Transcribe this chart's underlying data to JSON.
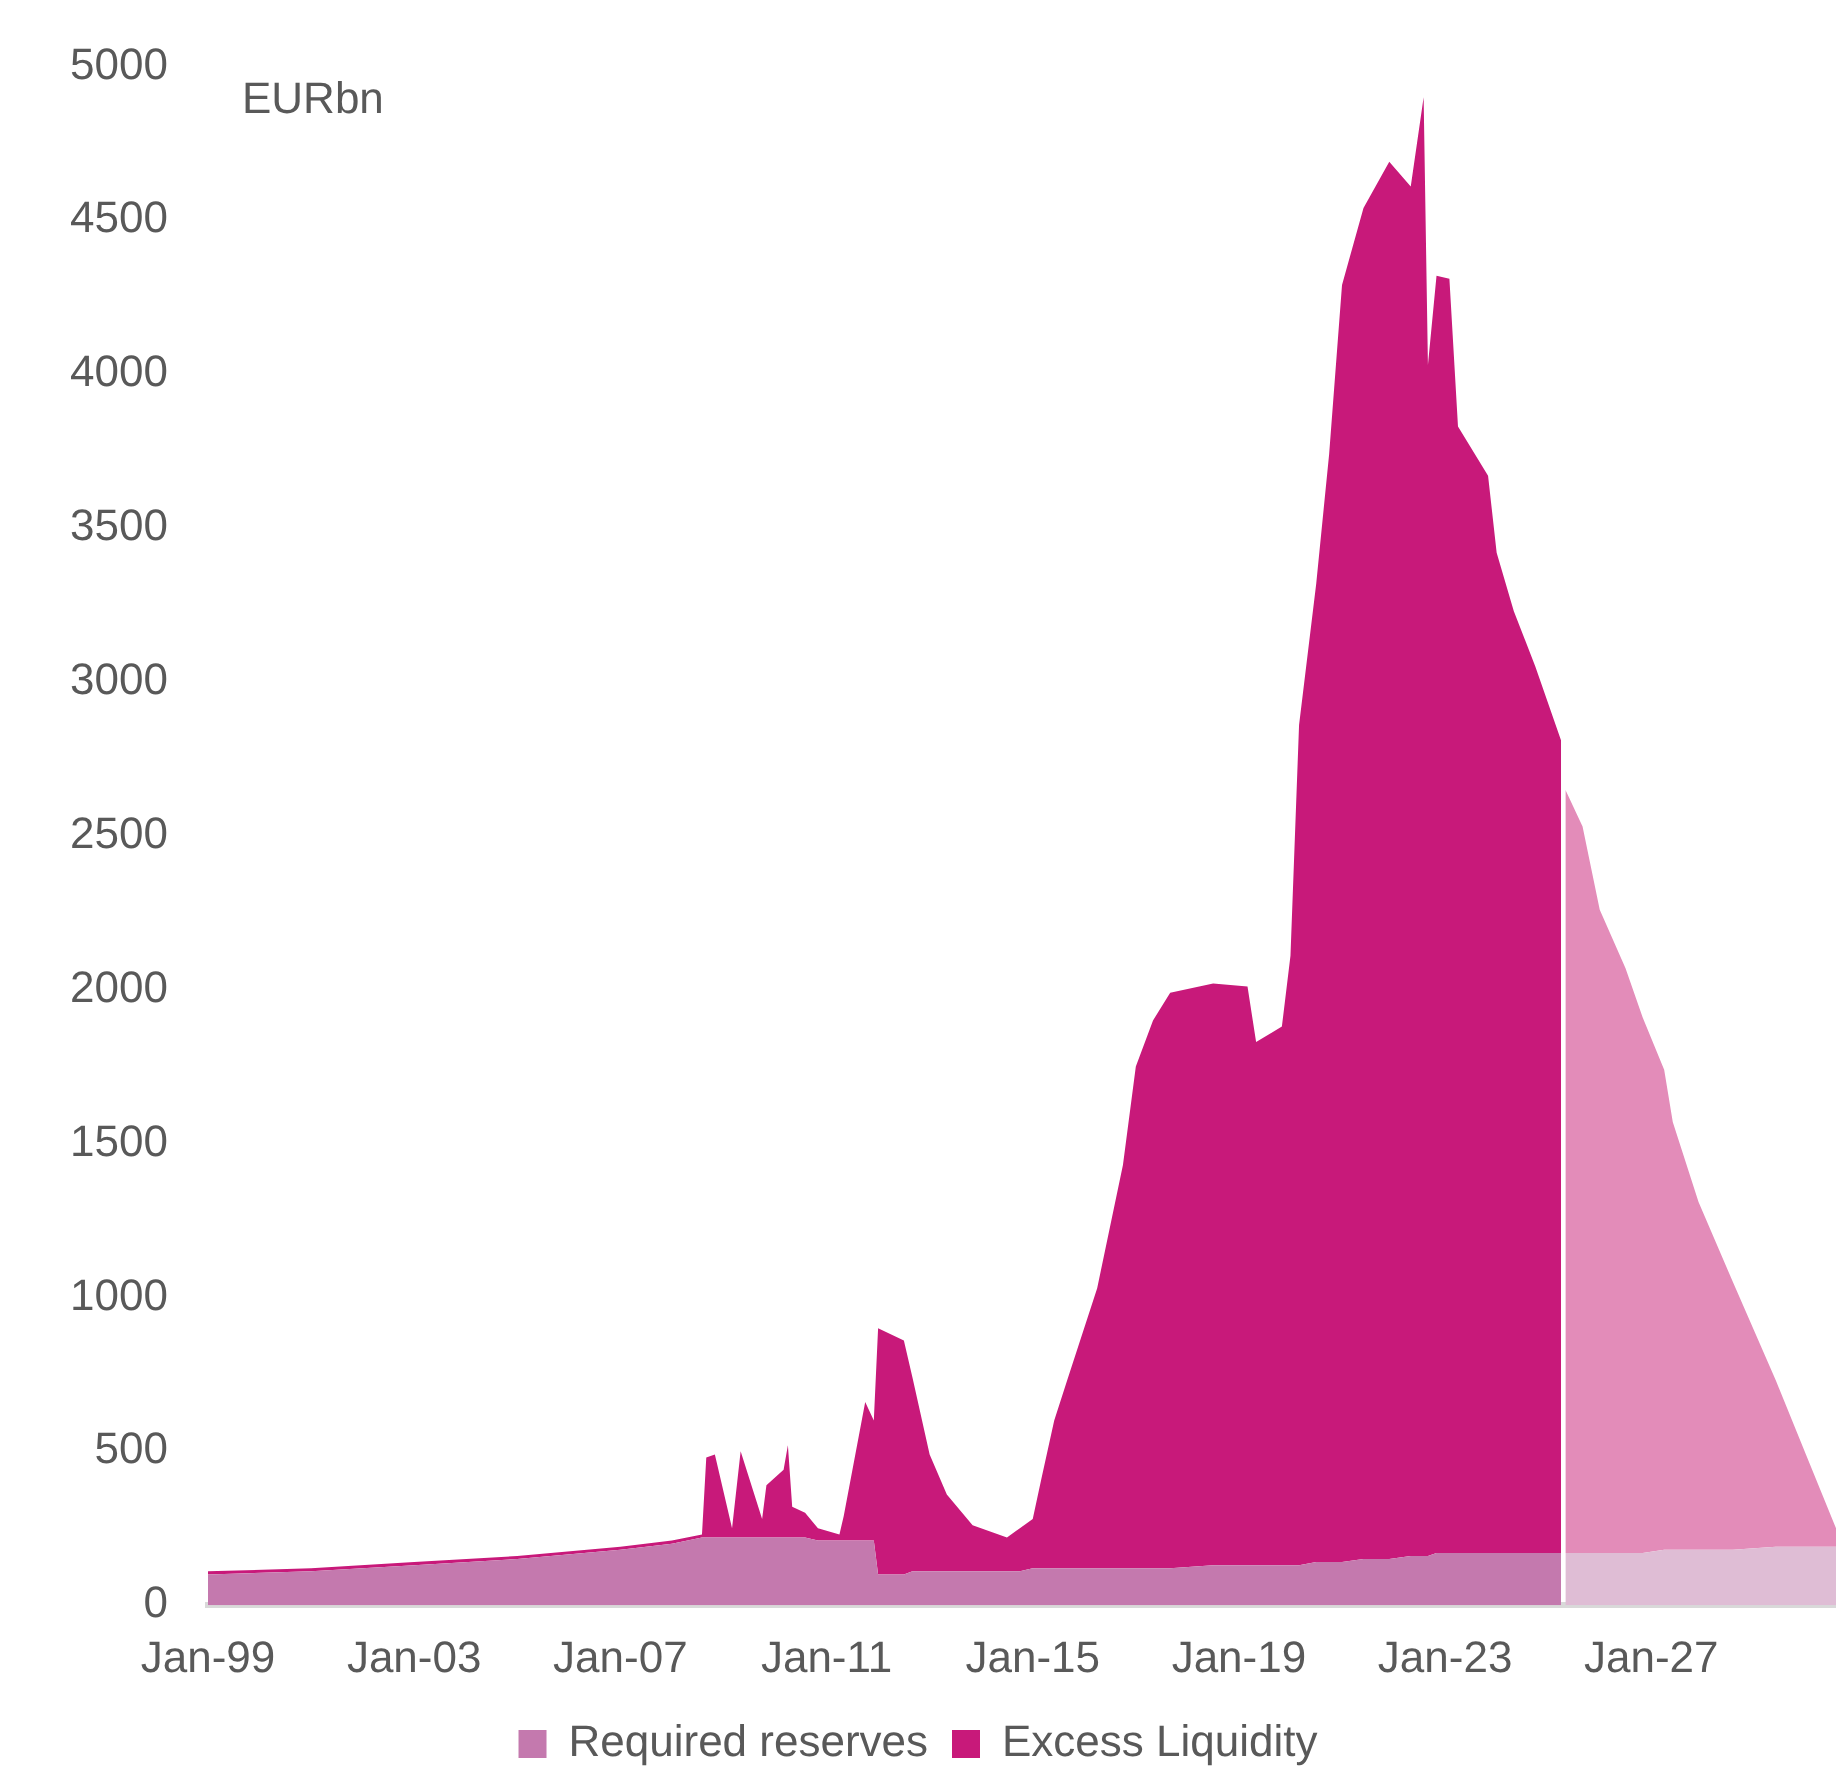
{
  "chart_data": {
    "type": "area",
    "stacked": true,
    "ylabel": "EURbn",
    "legend": "bottom",
    "grid": false,
    "x": [
      "1999-01",
      "2001-01",
      "2003-01",
      "2005-01",
      "2007-01",
      "2008-01",
      "2008-08",
      "2008-09",
      "2008-11",
      "2009-03",
      "2009-05",
      "2009-10",
      "2009-11",
      "2010-03",
      "2010-04",
      "2010-05",
      "2010-08",
      "2010-11",
      "2011-04",
      "2011-05",
      "2011-10",
      "2011-12",
      "2012-01",
      "2012-07",
      "2012-09",
      "2013-01",
      "2013-05",
      "2013-11",
      "2014-07",
      "2014-10",
      "2015-01",
      "2015-03",
      "2015-06",
      "2015-09",
      "2016-04",
      "2016-10",
      "2017-01",
      "2017-05",
      "2017-09",
      "2018-07",
      "2019-03",
      "2019-05",
      "2019-11",
      "2020-01",
      "2020-03",
      "2020-07",
      "2020-10",
      "2021-01",
      "2021-06",
      "2021-12",
      "2022-05",
      "2022-08",
      "2022-09",
      "2022-11",
      "2023-02",
      "2023-04",
      "2023-11",
      "2024-01",
      "2024-05",
      "2024-10",
      "2025-04",
      "2025-05",
      "2025-09",
      "2026-01",
      "2026-07",
      "2026-11",
      "2027-04",
      "2027-06",
      "2027-12",
      "2028-08",
      "2029-06",
      "2030-01",
      "2030-08"
    ],
    "series": [
      {
        "name": "Required reserves",
        "color": "#c479ae",
        "values": [
          100,
          110,
          130,
          150,
          180,
          200,
          220,
          220,
          220,
          220,
          220,
          220,
          220,
          220,
          220,
          220,
          220,
          210,
          210,
          210,
          210,
          210,
          100,
          100,
          110,
          110,
          110,
          110,
          110,
          110,
          120,
          120,
          120,
          120,
          120,
          120,
          120,
          120,
          120,
          130,
          130,
          130,
          130,
          130,
          130,
          140,
          140,
          140,
          150,
          150,
          160,
          160,
          160,
          170,
          170,
          170,
          170,
          170,
          170,
          170,
          170,
          null,
          null,
          null,
          null,
          null,
          null,
          null,
          null,
          null,
          null,
          null,
          null
        ]
      },
      {
        "name": "Excess Liquidity",
        "color": "#c8197a",
        "values": [
          10,
          10,
          10,
          10,
          10,
          10,
          10,
          260,
          270,
          30,
          280,
          60,
          170,
          220,
          300,
          100,
          80,
          40,
          20,
          80,
          450,
          390,
          800,
          760,
          630,
          380,
          250,
          150,
          110,
          140,
          160,
          290,
          480,
          610,
          910,
          1310,
          1630,
          1780,
          1870,
          1890,
          1880,
          1700,
          1750,
          1980,
          2730,
          3180,
          3600,
          4150,
          4390,
          4540,
          4450,
          4740,
          3870,
          4150,
          4140,
          3660,
          3500,
          3250,
          3060,
          2880,
          2640,
          null,
          null,
          null,
          null,
          null,
          null,
          null,
          null,
          null,
          null,
          null,
          null
        ]
      },
      {
        "color": "#dfbdd5",
        "values": [
          null,
          null,
          null,
          null,
          null,
          null,
          null,
          null,
          null,
          null,
          null,
          null,
          null,
          null,
          null,
          null,
          null,
          null,
          null,
          null,
          null,
          null,
          null,
          null,
          null,
          null,
          null,
          null,
          null,
          null,
          null,
          null,
          null,
          null,
          null,
          null,
          null,
          null,
          null,
          null,
          null,
          null,
          null,
          null,
          null,
          null,
          null,
          null,
          null,
          null,
          null,
          null,
          null,
          null,
          null,
          null,
          null,
          null,
          null,
          null,
          null,
          170,
          170,
          170,
          170,
          170,
          180,
          180,
          180,
          180,
          190,
          190,
          190
        ]
      },
      {
        "color": "#e38cb9",
        "values": [
          null,
          null,
          null,
          null,
          null,
          null,
          null,
          null,
          null,
          null,
          null,
          null,
          null,
          null,
          null,
          null,
          null,
          null,
          null,
          null,
          null,
          null,
          null,
          null,
          null,
          null,
          null,
          null,
          null,
          null,
          null,
          null,
          null,
          null,
          null,
          null,
          null,
          null,
          null,
          null,
          null,
          null,
          null,
          null,
          null,
          null,
          null,
          null,
          null,
          null,
          null,
          null,
          null,
          null,
          null,
          null,
          null,
          null,
          null,
          null,
          null,
          2480,
          2360,
          2090,
          1900,
          1740,
          1560,
          1390,
          1130,
          870,
          540,
          300,
          60
        ]
      }
    ],
    "xlim": [
      "1999-01",
      "2030-08"
    ],
    "xticks": [
      {
        "value": "1999-01",
        "label": "Jan-99"
      },
      {
        "value": "2003-01",
        "label": "Jan-03"
      },
      {
        "value": "2007-01",
        "label": "Jan-07"
      },
      {
        "value": "2011-01",
        "label": "Jan-11"
      },
      {
        "value": "2015-01",
        "label": "Jan-15"
      },
      {
        "value": "2019-01",
        "label": "Jan-19"
      },
      {
        "value": "2023-01",
        "label": "Jan-23"
      },
      {
        "value": "2027-01",
        "label": "Jan-27"
      }
    ],
    "ylim": [
      0,
      5000
    ],
    "yticks": [
      0,
      500,
      1000,
      1500,
      2000,
      2500,
      3000,
      3500,
      4000,
      4500,
      5000
    ]
  }
}
